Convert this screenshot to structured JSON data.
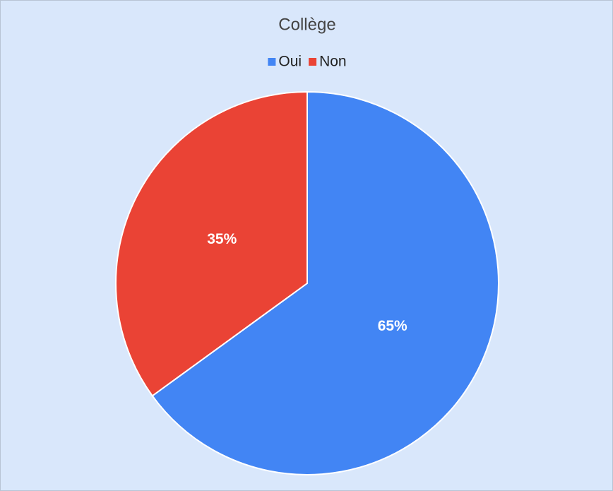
{
  "chart_data": {
    "type": "pie",
    "title": "Collège",
    "categories": [
      "Oui",
      "Non"
    ],
    "values": [
      65,
      35
    ],
    "value_labels": [
      "65%",
      "35%"
    ],
    "colors": [
      "#4285f4",
      "#ea4335"
    ],
    "legend": "top"
  }
}
